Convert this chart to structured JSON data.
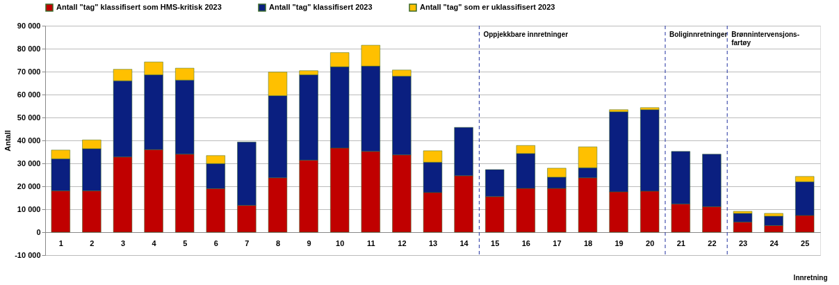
{
  "chart_data": {
    "type": "bar",
    "stacked": true,
    "ylabel": "Antall",
    "xlabel": "Innretning",
    "x": [
      1,
      2,
      3,
      4,
      5,
      6,
      7,
      8,
      9,
      10,
      11,
      12,
      13,
      14,
      15,
      16,
      17,
      18,
      19,
      20,
      21,
      22,
      23,
      24,
      25
    ],
    "xlim": [
      0.5,
      25.5
    ],
    "xticks": [
      1,
      2,
      3,
      4,
      5,
      6,
      7,
      8,
      9,
      10,
      11,
      12,
      13,
      14,
      15,
      16,
      17,
      18,
      19,
      20,
      21,
      22,
      23,
      24,
      25
    ],
    "ylim": [
      -10000,
      90000
    ],
    "yticks": [
      {
        "value": -10000,
        "label": "-10 000"
      },
      {
        "value": 0,
        "label": "0"
      },
      {
        "value": 10000,
        "label": "10 000"
      },
      {
        "value": 20000,
        "label": "20 000"
      },
      {
        "value": 30000,
        "label": "30 000"
      },
      {
        "value": 40000,
        "label": "40 000"
      },
      {
        "value": 50000,
        "label": "50 000"
      },
      {
        "value": 60000,
        "label": "60 000"
      },
      {
        "value": 70000,
        "label": "70 000"
      },
      {
        "value": 80000,
        "label": "80 000"
      },
      {
        "value": 90000,
        "label": "90 000"
      }
    ],
    "grid": "y",
    "legend": "top",
    "series": [
      {
        "name": "Antall \"tag\" klassifisert som HMS-kritisk 2023",
        "color": "#c00000",
        "values": [
          18000,
          18000,
          32800,
          36000,
          34000,
          19000,
          11700,
          23700,
          31400,
          36700,
          35200,
          33700,
          17300,
          24600,
          15500,
          19100,
          19100,
          23700,
          17600,
          17900,
          12300,
          11100,
          4400,
          2900,
          7300
        ]
      },
      {
        "name": "Antall \"tag\" klassifisert 2023",
        "color": "#0a1f80",
        "values": [
          14000,
          18400,
          33200,
          32600,
          32300,
          10900,
          27600,
          35800,
          37200,
          35400,
          37200,
          34300,
          13200,
          21100,
          11800,
          15200,
          4900,
          4400,
          34900,
          35500,
          22900,
          22900,
          3800,
          4100,
          14700
        ]
      },
      {
        "name": "Antall \"tag\" som er uklassifisert 2023",
        "color": "#ffc000",
        "values": [
          3800,
          3800,
          5000,
          5600,
          5200,
          3500,
          null,
          10300,
          1800,
          6200,
          9100,
          2700,
          5000,
          null,
          null,
          3500,
          3900,
          9100,
          900,
          900,
          null,
          null,
          900,
          1200,
          2300
        ]
      }
    ],
    "ref_lines": [
      {
        "axis": "x",
        "value": 14.5,
        "label": "Oppjekkbare innretninger",
        "color": "#1f2f9f",
        "line_style": "dashed"
      },
      {
        "axis": "x",
        "value": 20.5,
        "label": "Boliginnretninger",
        "color": "#1f2f9f",
        "line_style": "dashed"
      },
      {
        "axis": "x",
        "value": 22.5,
        "label": "Brønnintervensjons-\nfartøy",
        "color": "#1f2f9f",
        "line_style": "dashed"
      }
    ]
  }
}
